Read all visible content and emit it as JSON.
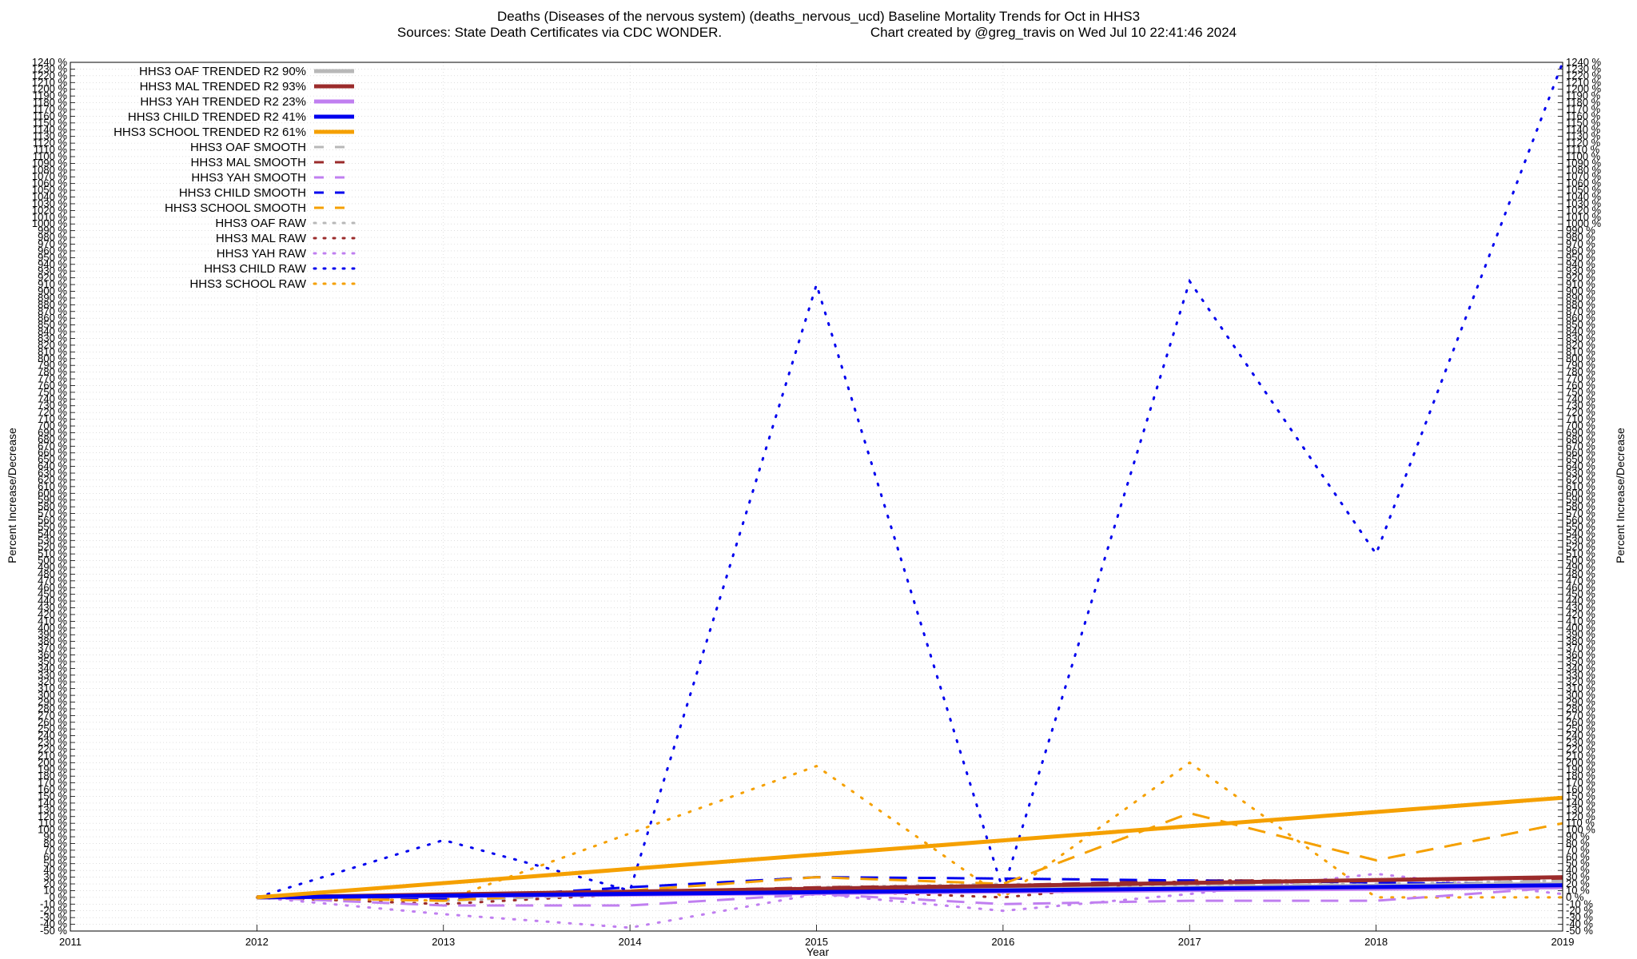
{
  "chart_data": {
    "type": "line",
    "title_line1": "Deaths (Diseases of the nervous system) (deaths_nervous_ucd)  Baseline Mortality Trends for Oct in HHS3",
    "title_line2_left": "Sources: State Death Certificates via CDC WONDER.",
    "title_line2_right": "Chart created by @greg_travis on Wed Jul 10 22:41:46 2024",
    "xlabel": "Year",
    "ylabel": "Percent Increase/Decrease",
    "xlim": [
      2011,
      2019
    ],
    "ylim": [
      -50,
      1240
    ],
    "ytick_step": 10,
    "ytick_suffix": " %",
    "xticks": [
      2011,
      2012,
      2013,
      2014,
      2015,
      2016,
      2017,
      2018,
      2019
    ],
    "colors": {
      "oaf": "#b8b8b8",
      "mal": "#9b2b2b",
      "yah": "#c07ff0",
      "child": "#0000ee",
      "school": "#f5a000"
    },
    "series": [
      {
        "name": "HHS3 OAF TRENDED R2  90%",
        "group": "oaf",
        "style": "trend",
        "x": [
          2012,
          2019
        ],
        "y": [
          0,
          20
        ]
      },
      {
        "name": "HHS3 MAL TRENDED R2  93%",
        "group": "mal",
        "style": "trend",
        "x": [
          2012,
          2019
        ],
        "y": [
          0,
          30
        ]
      },
      {
        "name": "HHS3 YAH TRENDED R2  23%",
        "group": "yah",
        "style": "trend",
        "x": [
          2012,
          2019
        ],
        "y": [
          0,
          15
        ]
      },
      {
        "name": "HHS3 CHILD TRENDED R2  41%",
        "group": "child",
        "style": "trend",
        "x": [
          2012,
          2019
        ],
        "y": [
          0,
          18
        ]
      },
      {
        "name": "HHS3 SCHOOL TRENDED R2  61%",
        "group": "school",
        "style": "trend",
        "x": [
          2012,
          2019
        ],
        "y": [
          0,
          148
        ]
      },
      {
        "name": "HHS3 OAF SMOOTH",
        "group": "oaf",
        "style": "smooth",
        "x": [
          2012,
          2013,
          2014,
          2015,
          2016,
          2017,
          2018,
          2019
        ],
        "y": [
          0,
          -5,
          5,
          12,
          15,
          20,
          18,
          25
        ]
      },
      {
        "name": "HHS3 MAL SMOOTH",
        "group": "mal",
        "style": "smooth",
        "x": [
          2012,
          2013,
          2014,
          2015,
          2016,
          2017,
          2018,
          2019
        ],
        "y": [
          0,
          -3,
          8,
          15,
          18,
          25,
          25,
          28
        ]
      },
      {
        "name": "HHS3 YAH SMOOTH",
        "group": "yah",
        "style": "smooth",
        "x": [
          2012,
          2013,
          2014,
          2015,
          2016,
          2017,
          2018,
          2019
        ],
        "y": [
          0,
          -12,
          -12,
          5,
          -10,
          -5,
          -5,
          15
        ]
      },
      {
        "name": "HHS3 CHILD SMOOTH",
        "group": "child",
        "style": "smooth",
        "x": [
          2012,
          2013,
          2014,
          2015,
          2016,
          2017,
          2018,
          2019
        ],
        "y": [
          0,
          -2,
          15,
          30,
          28,
          25,
          22,
          18
        ]
      },
      {
        "name": "HHS3 SCHOOL SMOOTH",
        "group": "school",
        "style": "smooth",
        "x": [
          2012,
          2013,
          2014,
          2015,
          2016,
          2017,
          2018,
          2019
        ],
        "y": [
          0,
          -5,
          10,
          30,
          20,
          125,
          55,
          110
        ]
      },
      {
        "name": "HHS3 OAF RAW",
        "group": "oaf",
        "style": "raw",
        "x": [
          2012,
          2013,
          2014,
          2015,
          2016,
          2017,
          2018,
          2019
        ],
        "y": [
          0,
          -5,
          5,
          15,
          20,
          18,
          20,
          25
        ]
      },
      {
        "name": "HHS3 MAL RAW",
        "group": "mal",
        "style": "raw",
        "x": [
          2012,
          2013,
          2014,
          2015,
          2016,
          2017,
          2018,
          2019
        ],
        "y": [
          0,
          -10,
          5,
          10,
          0,
          25,
          25,
          30
        ]
      },
      {
        "name": "HHS3 YAH RAW",
        "group": "yah",
        "style": "raw",
        "x": [
          2012,
          2013,
          2014,
          2015,
          2016,
          2017,
          2018,
          2019
        ],
        "y": [
          0,
          -25,
          -45,
          5,
          -20,
          5,
          35,
          5
        ]
      },
      {
        "name": "HHS3 CHILD RAW",
        "group": "child",
        "style": "raw",
        "x": [
          2012,
          2013,
          2014,
          2015,
          2016,
          2017,
          2018,
          2019
        ],
        "y": [
          0,
          85,
          10,
          910,
          10,
          915,
          510,
          1240
        ]
      },
      {
        "name": "HHS3 SCHOOL RAW",
        "group": "school",
        "style": "raw",
        "x": [
          2012,
          2013,
          2014,
          2015,
          2016,
          2017,
          2018,
          2019
        ],
        "y": [
          0,
          -5,
          95,
          195,
          0,
          200,
          0,
          0
        ]
      }
    ]
  }
}
